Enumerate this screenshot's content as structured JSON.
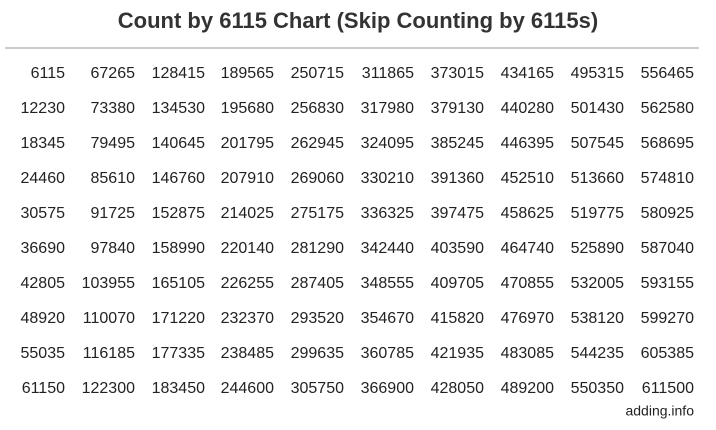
{
  "header": {
    "title": "Count by 6115 Chart (Skip Counting by 6115s)"
  },
  "table": {
    "rows": [
      [
        6115,
        67265,
        128415,
        189565,
        250715,
        311865,
        373015,
        434165,
        495315,
        556465
      ],
      [
        12230,
        73380,
        134530,
        195680,
        256830,
        317980,
        379130,
        440280,
        501430,
        562580
      ],
      [
        18345,
        79495,
        140645,
        201795,
        262945,
        324095,
        385245,
        446395,
        507545,
        568695
      ],
      [
        24460,
        85610,
        146760,
        207910,
        269060,
        330210,
        391360,
        452510,
        513660,
        574810
      ],
      [
        30575,
        91725,
        152875,
        214025,
        275175,
        336325,
        397475,
        458625,
        519775,
        580925
      ],
      [
        36690,
        97840,
        158990,
        220140,
        281290,
        342440,
        403590,
        464740,
        525890,
        587040
      ],
      [
        42805,
        103955,
        165105,
        226255,
        287405,
        348555,
        409705,
        470855,
        532005,
        593155
      ],
      [
        48920,
        110070,
        171220,
        232370,
        293520,
        354670,
        415820,
        476970,
        538120,
        599270
      ],
      [
        55035,
        116185,
        177335,
        238485,
        299635,
        360785,
        421935,
        483085,
        544235,
        605385
      ],
      [
        61150,
        122300,
        183450,
        244600,
        305750,
        366900,
        428050,
        489200,
        550350,
        611500
      ]
    ]
  },
  "footer": {
    "source": "adding.info"
  }
}
